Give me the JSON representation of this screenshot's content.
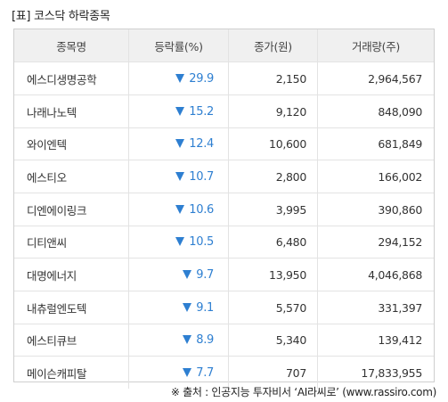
{
  "title": "[표] 코스닥 하락종목",
  "columns": [
    "종목명",
    "등락률(%)",
    "종가(원)",
    "거래량(주)"
  ],
  "rows": [
    {
      "name": "에스디생명공학",
      "change": "29.9",
      "close": "2,150",
      "volume": "2,964,567"
    },
    {
      "name": "나래나노텍",
      "change": "15.2",
      "close": "9,120",
      "volume": "848,090"
    },
    {
      "name": "와이엔텍",
      "change": "12.4",
      "close": "10,600",
      "volume": "681,849"
    },
    {
      "name": "에스티오",
      "change": "10.7",
      "close": "2,800",
      "volume": "166,002"
    },
    {
      "name": "디엔에이링크",
      "change": "10.6",
      "close": "3,995",
      "volume": "390,860"
    },
    {
      "name": "디티앤씨",
      "change": "10.5",
      "close": "6,480",
      "volume": "294,152"
    },
    {
      "name": "대명에너지",
      "change": "9.7",
      "close": "13,950",
      "volume": "4,046,868"
    },
    {
      "name": "내츄럴엔도텍",
      "change": "9.1",
      "close": "5,570",
      "volume": "331,397"
    },
    {
      "name": "에스티큐브",
      "change": "8.9",
      "close": "5,340",
      "volume": "139,412"
    },
    {
      "name": "메이슨캐피탈",
      "change": "7.7",
      "close": "707",
      "volume": "17,833,955"
    }
  ],
  "change_direction_icon": "down-triangle-icon",
  "colors": {
    "down": "#2e7fd1",
    "header_bg": "#f0f0f0",
    "border": "#cfcfcf"
  },
  "source": "※ 출처 : 인공지능 투자비서 ‘AI라씨로’ (www.rassiro.com)"
}
